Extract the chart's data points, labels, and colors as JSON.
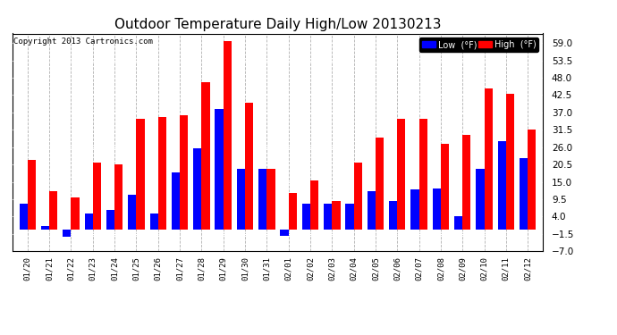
{
  "title": "Outdoor Temperature Daily High/Low 20130213",
  "copyright": "Copyright 2013 Cartronics.com",
  "legend_low": "Low  (°F)",
  "legend_high": "High  (°F)",
  "dates": [
    "01/20",
    "01/21",
    "01/22",
    "01/23",
    "01/24",
    "01/25",
    "01/26",
    "01/27",
    "01/28",
    "01/29",
    "01/30",
    "01/31",
    "02/01",
    "02/02",
    "02/03",
    "02/04",
    "02/05",
    "02/06",
    "02/07",
    "02/08",
    "02/09",
    "02/10",
    "02/11",
    "02/12"
  ],
  "high": [
    22.0,
    12.0,
    10.0,
    21.0,
    20.5,
    35.0,
    35.5,
    36.0,
    46.5,
    59.5,
    40.0,
    19.0,
    11.5,
    15.5,
    9.0,
    21.0,
    29.0,
    35.0,
    35.0,
    27.0,
    30.0,
    44.5,
    43.0,
    31.5
  ],
  "low": [
    8.0,
    1.0,
    -2.5,
    5.0,
    6.0,
    11.0,
    5.0,
    18.0,
    25.5,
    38.0,
    19.0,
    19.0,
    -2.0,
    8.0,
    8.0,
    8.0,
    12.0,
    9.0,
    12.5,
    13.0,
    4.0,
    19.0,
    28.0,
    22.5
  ],
  "ylim": [
    -7.0,
    62.0
  ],
  "yticks": [
    -7.0,
    -1.5,
    4.0,
    9.5,
    15.0,
    20.5,
    26.0,
    31.5,
    37.0,
    42.5,
    48.0,
    53.5,
    59.0
  ],
  "bg_color": "#ffffff",
  "plot_bg": "#ffffff",
  "high_color": "#ff0000",
  "low_color": "#0000ff",
  "grid_color": "#b0b0b0",
  "title_fontsize": 11,
  "bar_width": 0.38,
  "legend_bg": "#000000",
  "legend_low_bg": "#0000ff",
  "legend_high_bg": "#ff0000"
}
